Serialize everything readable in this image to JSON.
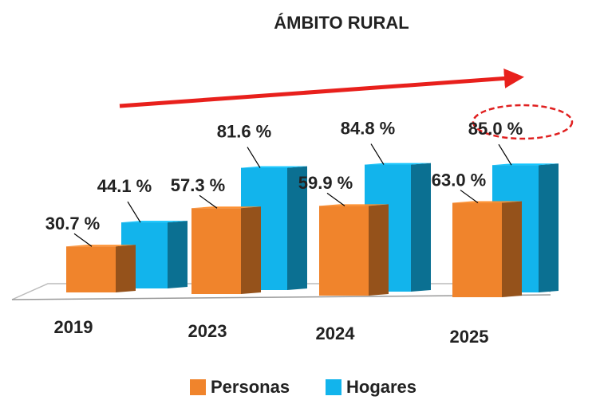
{
  "chart_data": {
    "type": "bar3d",
    "title": "ÁMBITO RURAL",
    "categories": [
      "2019",
      "2023",
      "2024",
      "2025"
    ],
    "series": [
      {
        "name": "Personas",
        "color": "#f0842c",
        "values": [
          30.7,
          57.3,
          59.9,
          63.0
        ],
        "value_labels": [
          "30.7 %",
          "57.3 %",
          "59.9 %",
          "63.0 %"
        ]
      },
      {
        "name": "Hogares",
        "color": "#12b4ec",
        "values": [
          44.1,
          81.6,
          84.8,
          85.0
        ],
        "value_labels": [
          "44.1 %",
          "81.6 %",
          "84.8 %",
          "85.0 %"
        ]
      }
    ]
  }
}
